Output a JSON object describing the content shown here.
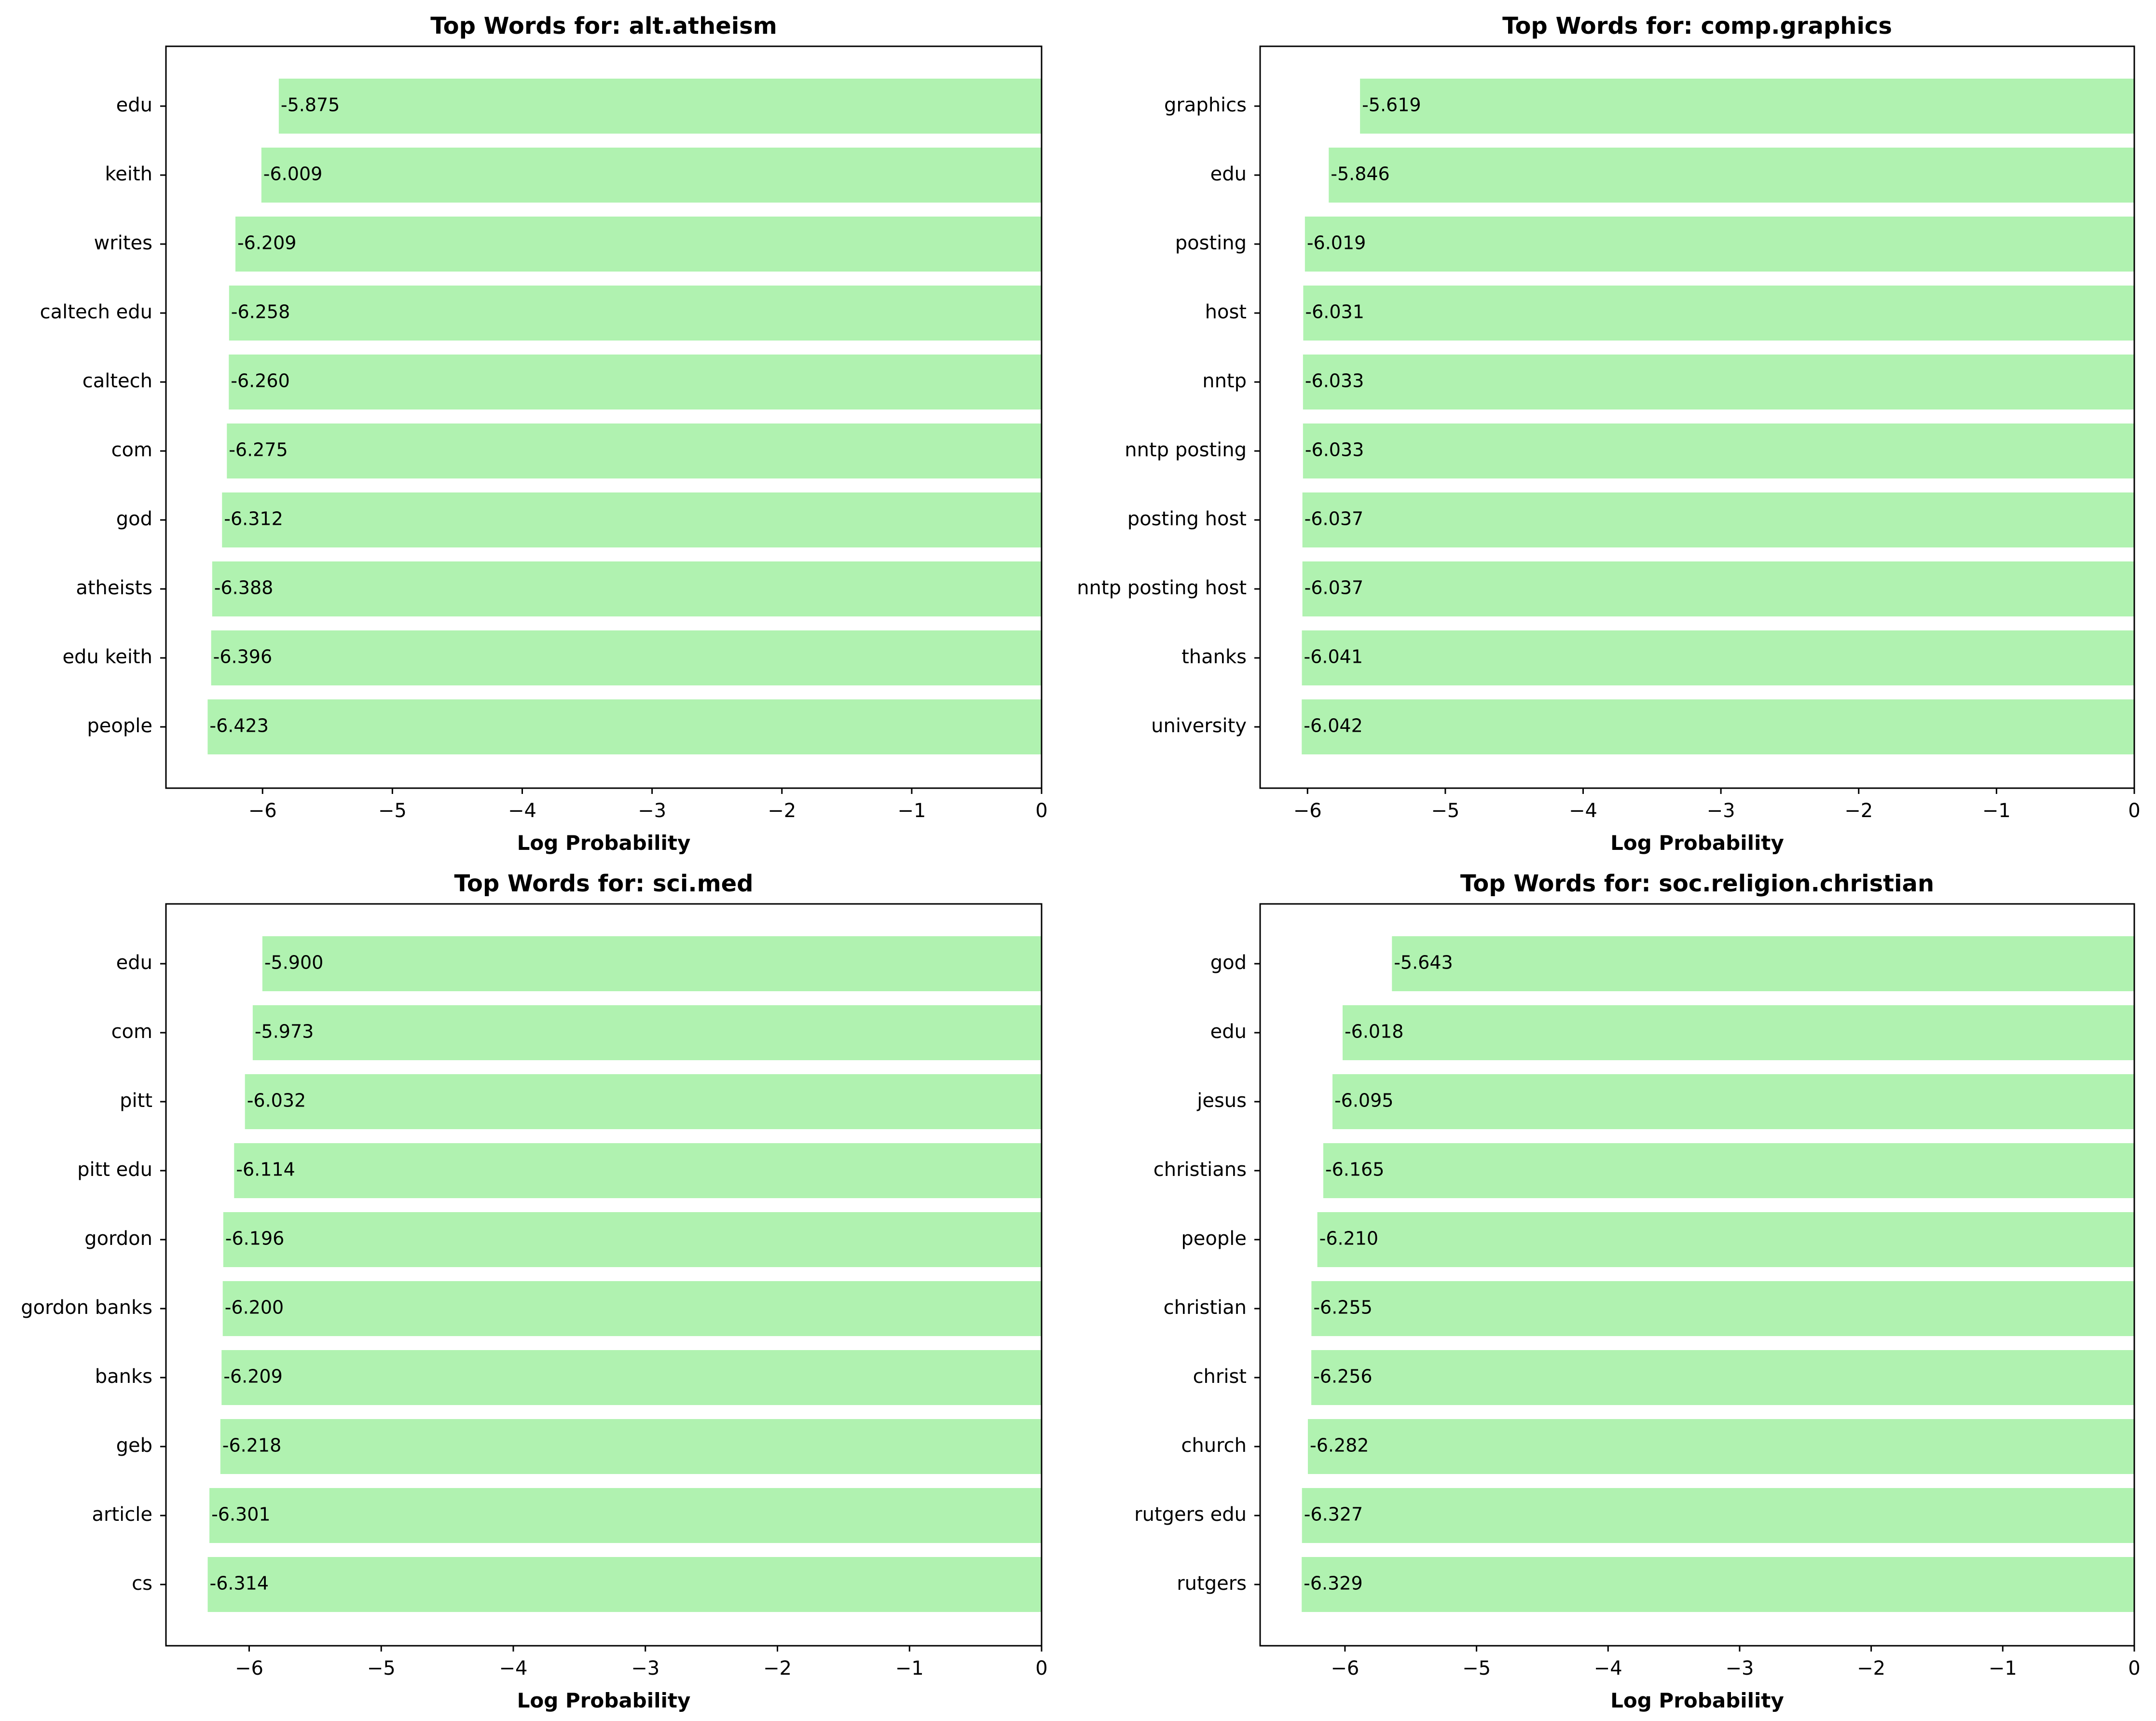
{
  "figure": {
    "bar_color": "#b0f2b0",
    "axis_color": "#000000",
    "xlabel_text": "Log Probability"
  },
  "chart_data": [
    {
      "type": "bar",
      "orientation": "horizontal",
      "title": "Top Words for: alt.atheism",
      "xlabel": "Log Probability",
      "ylabel": "",
      "xlim": [
        -6.744,
        0
      ],
      "xticks": [
        -6,
        -5,
        -4,
        -3,
        -2,
        -1,
        0
      ],
      "xtick_labels": [
        "−6",
        "−5",
        "−4",
        "−3",
        "−2",
        "−1",
        "0"
      ],
      "categories": [
        "edu",
        "keith",
        "writes",
        "caltech edu",
        "caltech",
        "com",
        "god",
        "atheists",
        "edu keith",
        "people"
      ],
      "values": [
        -5.875,
        -6.009,
        -6.209,
        -6.258,
        -6.26,
        -6.275,
        -6.312,
        -6.388,
        -6.396,
        -6.423
      ],
      "value_labels": [
        "-5.875",
        "-6.009",
        "-6.209",
        "-6.258",
        "-6.260",
        "-6.275",
        "-6.312",
        "-6.388",
        "-6.396",
        "-6.423"
      ]
    },
    {
      "type": "bar",
      "orientation": "horizontal",
      "title": "Top Words for: comp.graphics",
      "xlabel": "Log Probability",
      "ylabel": "",
      "xlim": [
        -6.344,
        0
      ],
      "xticks": [
        -6,
        -5,
        -4,
        -3,
        -2,
        -1,
        0
      ],
      "xtick_labels": [
        "−6",
        "−5",
        "−4",
        "−3",
        "−2",
        "−1",
        "0"
      ],
      "categories": [
        "graphics",
        "edu",
        "posting",
        "host",
        "nntp",
        "nntp posting",
        "posting host",
        "nntp posting host",
        "thanks",
        "university"
      ],
      "values": [
        -5.619,
        -5.846,
        -6.019,
        -6.031,
        -6.033,
        -6.033,
        -6.037,
        -6.037,
        -6.041,
        -6.042
      ],
      "value_labels": [
        "-5.619",
        "-5.846",
        "-6.019",
        "-6.031",
        "-6.033",
        "-6.033",
        "-6.037",
        "-6.037",
        "-6.041",
        "-6.042"
      ]
    },
    {
      "type": "bar",
      "orientation": "horizontal",
      "title": "Top Words for: sci.med",
      "xlabel": "Log Probability",
      "ylabel": "",
      "xlim": [
        -6.63,
        0
      ],
      "xticks": [
        -6,
        -5,
        -4,
        -3,
        -2,
        -1,
        0
      ],
      "xtick_labels": [
        "−6",
        "−5",
        "−4",
        "−3",
        "−2",
        "−1",
        "0"
      ],
      "categories": [
        "edu",
        "com",
        "pitt",
        "pitt edu",
        "gordon",
        "gordon banks",
        "banks",
        "geb",
        "article",
        "cs"
      ],
      "values": [
        -5.9,
        -5.973,
        -6.032,
        -6.114,
        -6.196,
        -6.2,
        -6.209,
        -6.218,
        -6.301,
        -6.314
      ],
      "value_labels": [
        "-5.900",
        "-5.973",
        "-6.032",
        "-6.114",
        "-6.196",
        "-6.200",
        "-6.209",
        "-6.218",
        "-6.301",
        "-6.314"
      ]
    },
    {
      "type": "bar",
      "orientation": "horizontal",
      "title": "Top Words for: soc.religion.christian",
      "xlabel": "Log Probability",
      "ylabel": "",
      "xlim": [
        -6.645,
        0
      ],
      "xticks": [
        -6,
        -5,
        -4,
        -3,
        -2,
        -1,
        0
      ],
      "xtick_labels": [
        "−6",
        "−5",
        "−4",
        "−3",
        "−2",
        "−1",
        "0"
      ],
      "categories": [
        "god",
        "edu",
        "jesus",
        "christians",
        "people",
        "christian",
        "christ",
        "church",
        "rutgers edu",
        "rutgers"
      ],
      "values": [
        -5.643,
        -6.018,
        -6.095,
        -6.165,
        -6.21,
        -6.255,
        -6.256,
        -6.282,
        -6.327,
        -6.329
      ],
      "value_labels": [
        "-5.643",
        "-6.018",
        "-6.095",
        "-6.165",
        "-6.210",
        "-6.255",
        "-6.256",
        "-6.282",
        "-6.327",
        "-6.329"
      ]
    }
  ]
}
